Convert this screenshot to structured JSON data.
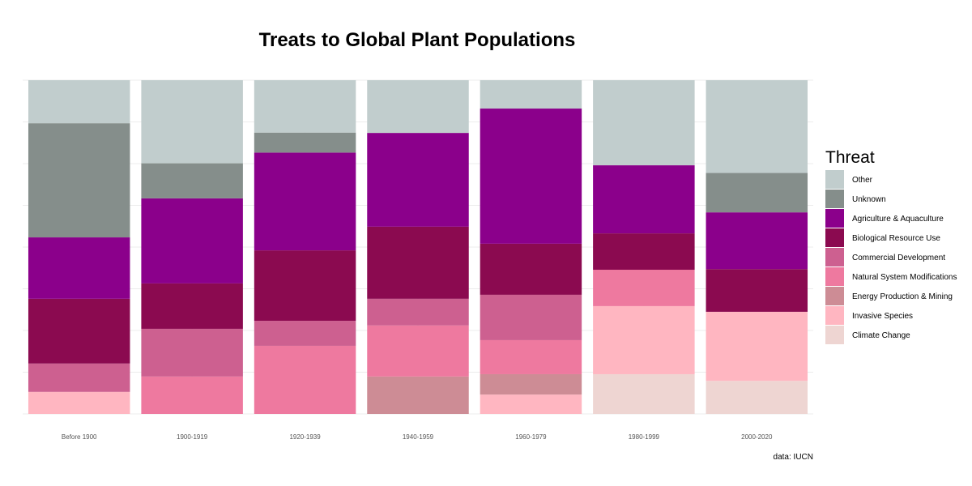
{
  "chart_data": {
    "type": "bar",
    "stacked": true,
    "normalized": true,
    "title": "Treats to Global Plant Populations",
    "caption": "data: IUCN",
    "xlabel": "",
    "ylabel": "",
    "ylim": [
      0,
      1
    ],
    "grid": true,
    "legend_position": "right",
    "legend_title": "Threat",
    "categories": [
      "Before 1900",
      "1900-1919",
      "1920-1939",
      "1940-1959",
      "1960-1979",
      "1980-1999",
      "2000-2020"
    ],
    "series": [
      {
        "name": "Climate Change",
        "color": "#EED5D2",
        "values": [
          0,
          0,
          0,
          0,
          0,
          0.119,
          0.099
        ]
      },
      {
        "name": "Invasive Species",
        "color": "#FFB6C1",
        "values": [
          0.066,
          0,
          0,
          0,
          0.058,
          0.204,
          0.207
        ]
      },
      {
        "name": "Energy Production & Mining",
        "color": "#CD8C95",
        "values": [
          0,
          0,
          0,
          0.112,
          0.061,
          0,
          0
        ]
      },
      {
        "name": "Natural System Modifications",
        "color": "#EE799F",
        "values": [
          0,
          0.112,
          0.204,
          0.153,
          0.102,
          0.109,
          0
        ]
      },
      {
        "name": "Commercial Development",
        "color": "#CD6090",
        "values": [
          0.085,
          0.143,
          0.075,
          0.08,
          0.136,
          0,
          0
        ]
      },
      {
        "name": "Biological Resource Use",
        "color": "#8B0A50",
        "values": [
          0.194,
          0.136,
          0.211,
          0.216,
          0.153,
          0.109,
          0.128
        ]
      },
      {
        "name": "Agriculture & Aquaculture",
        "color": "#8B008B",
        "values": [
          0.184,
          0.255,
          0.293,
          0.281,
          0.405,
          0.204,
          0.17
        ]
      },
      {
        "name": "Unknown",
        "color": "#858E8B",
        "values": [
          0.342,
          0.105,
          0.06,
          0,
          0,
          0,
          0.118
        ]
      },
      {
        "name": "Other",
        "color": "#C1CDCD",
        "values": [
          0.129,
          0.249,
          0.157,
          0.158,
          0.085,
          0.255,
          0.278
        ]
      }
    ]
  }
}
